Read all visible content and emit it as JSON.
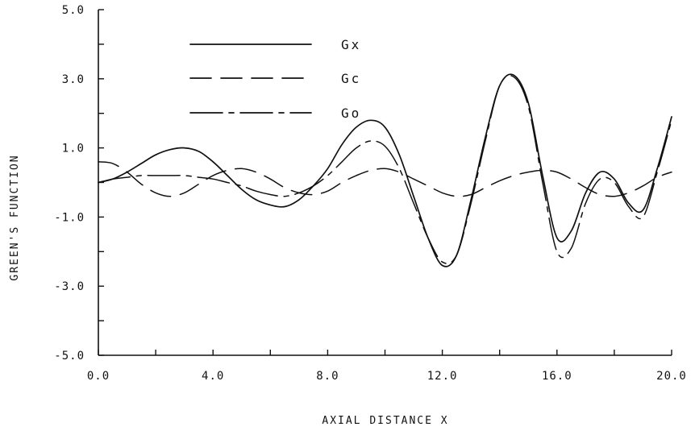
{
  "chart_data": {
    "type": "line",
    "title": "",
    "xlabel": "AXIAL DISTANCE X",
    "ylabel": "GREEN'S FUNCTION",
    "xlim": [
      0.0,
      20.0
    ],
    "ylim": [
      -5.0,
      5.0
    ],
    "x_ticks": [
      0,
      2,
      4,
      6,
      8,
      10,
      12,
      14,
      16,
      18,
      20
    ],
    "x_tick_labels": [
      "0.0",
      "4.0",
      "8.0",
      "12.0",
      "16.0",
      "20.0"
    ],
    "x_tick_label_values": [
      0,
      4,
      8,
      12,
      16,
      20
    ],
    "y_ticks": [
      -5,
      -4,
      -3,
      -2,
      -1,
      0,
      1,
      2,
      3,
      4,
      5
    ],
    "y_tick_labels": [
      "-5.0",
      "-3.0",
      "-1.0",
      "1.0",
      "3.0",
      "5.0"
    ],
    "y_tick_label_values": [
      -5,
      -3,
      -1,
      1,
      3,
      5
    ],
    "grid": false,
    "legend_position": "top-left",
    "series": [
      {
        "name": "Gx",
        "line_style": "solid",
        "x": [
          0,
          0.5,
          1,
          1.5,
          2,
          2.5,
          3,
          3.5,
          4,
          4.5,
          5,
          5.5,
          6,
          6.5,
          7,
          7.5,
          8,
          8.5,
          9,
          9.5,
          10,
          10.5,
          11,
          11.5,
          12,
          12.5,
          13,
          13.5,
          14,
          14.5,
          15,
          15.5,
          16,
          16.5,
          17,
          17.5,
          18,
          18.5,
          19,
          19.5,
          20
        ],
        "y": [
          0.0,
          0.1,
          0.3,
          0.55,
          0.8,
          0.95,
          1.0,
          0.9,
          0.6,
          0.2,
          -0.2,
          -0.5,
          -0.65,
          -0.7,
          -0.5,
          -0.1,
          0.4,
          1.1,
          1.6,
          1.8,
          1.6,
          0.8,
          -0.4,
          -1.6,
          -2.4,
          -2.1,
          -0.5,
          1.3,
          2.8,
          3.1,
          2.3,
          0.2,
          -1.6,
          -1.4,
          -0.3,
          0.3,
          0.1,
          -0.6,
          -0.8,
          0.4,
          1.9
        ]
      },
      {
        "name": "Gc",
        "line_style": "dashed",
        "x": [
          0,
          0.5,
          1,
          1.5,
          2,
          2.5,
          3,
          3.5,
          4,
          4.5,
          5,
          5.5,
          6,
          6.5,
          7,
          7.5,
          8,
          8.5,
          9,
          9.5,
          10,
          10.5,
          11,
          11.5,
          12,
          12.5,
          13,
          13.5,
          14,
          14.5,
          15,
          15.5,
          16,
          16.5,
          17,
          17.5,
          18,
          18.5,
          19,
          19.5,
          20
        ],
        "y": [
          0.6,
          0.55,
          0.3,
          -0.05,
          -0.3,
          -0.4,
          -0.3,
          -0.05,
          0.2,
          0.35,
          0.4,
          0.3,
          0.1,
          -0.15,
          -0.3,
          -0.35,
          -0.25,
          0.0,
          0.2,
          0.35,
          0.4,
          0.3,
          0.1,
          -0.1,
          -0.3,
          -0.4,
          -0.35,
          -0.15,
          0.05,
          0.2,
          0.3,
          0.35,
          0.3,
          0.1,
          -0.15,
          -0.35,
          -0.4,
          -0.3,
          -0.1,
          0.15,
          0.3
        ]
      },
      {
        "name": "Go",
        "line_style": "long-short-dash",
        "x": [
          0,
          0.5,
          1,
          1.5,
          2,
          2.5,
          3,
          3.5,
          4,
          4.5,
          5,
          5.5,
          6,
          6.5,
          7,
          7.5,
          8,
          8.5,
          9,
          9.5,
          10,
          10.5,
          11,
          11.5,
          12,
          12.5,
          13,
          13.5,
          14,
          14.5,
          15,
          15.5,
          16,
          16.5,
          17,
          17.5,
          18,
          18.5,
          19,
          19.5,
          20
        ],
        "y": [
          0.0,
          0.1,
          0.15,
          0.2,
          0.2,
          0.2,
          0.2,
          0.15,
          0.1,
          0.0,
          -0.1,
          -0.25,
          -0.35,
          -0.4,
          -0.3,
          -0.1,
          0.2,
          0.6,
          1.0,
          1.2,
          1.05,
          0.4,
          -0.6,
          -1.6,
          -2.3,
          -2.1,
          -0.6,
          1.2,
          2.8,
          3.05,
          2.2,
          0.0,
          -2.0,
          -1.9,
          -0.6,
          0.1,
          0.0,
          -0.7,
          -1.0,
          0.3,
          1.8
        ]
      }
    ]
  }
}
